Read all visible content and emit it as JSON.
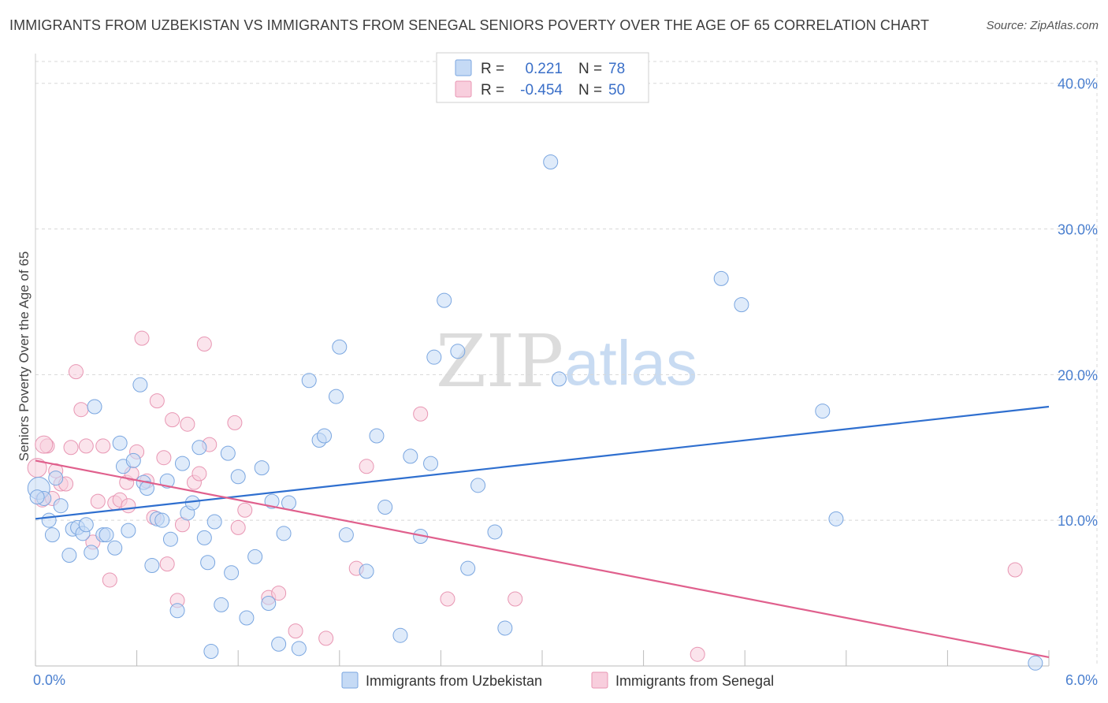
{
  "header": {
    "title": "IMMIGRANTS FROM UZBEKISTAN VS IMMIGRANTS FROM SENEGAL SENIORS POVERTY OVER THE AGE OF 65 CORRELATION CHART",
    "source": "Source: ZipAtlas.com"
  },
  "watermark": {
    "zip": "ZIP",
    "atlas": "atlas"
  },
  "colors": {
    "blue_fill": "#c5daf5",
    "blue_stroke": "#7aa6e0",
    "blue_line": "#2f6fcf",
    "pink_fill": "#f8cedd",
    "pink_stroke": "#e896b3",
    "pink_line": "#e0608d",
    "grid": "#d8d8d8",
    "tick_text": "#4a7fcf"
  },
  "chart_data": {
    "type": "scatter",
    "title": "IMMIGRANTS FROM UZBEKISTAN VS IMMIGRANTS FROM SENEGAL SENIORS POVERTY OVER THE AGE OF 65 CORRELATION CHART",
    "xlabel": "",
    "ylabel": "Seniors Poverty Over the Age of 65",
    "xlim": [
      0,
      6
    ],
    "ylim": [
      0,
      41.5
    ],
    "x_tick_labels": [
      "0.0%",
      "6.0%"
    ],
    "y_ticks": [
      10,
      20,
      30,
      40
    ],
    "y_tick_labels": [
      "10.0%",
      "20.0%",
      "30.0%",
      "40.0%"
    ],
    "grid": true,
    "legend": {
      "position": "top-center",
      "rows": [
        {
          "r_label": "R =",
          "r_value": "0.221",
          "n_label": "N =",
          "n_value": "78"
        },
        {
          "r_label": "R =",
          "r_value": "-0.454",
          "n_label": "N =",
          "n_value": "50"
        }
      ]
    },
    "series": [
      {
        "name": "Immigrants from Uzbekistan",
        "color": "blue",
        "trendline": {
          "x": [
            0,
            6
          ],
          "y": [
            10.1,
            17.8
          ]
        },
        "points": [
          [
            0.02,
            12.2
          ],
          [
            0.05,
            11.5
          ],
          [
            0.08,
            10.0
          ],
          [
            0.1,
            9.0
          ],
          [
            0.12,
            12.9
          ],
          [
            0.15,
            11.0
          ],
          [
            0.2,
            7.6
          ],
          [
            0.22,
            9.4
          ],
          [
            0.25,
            9.5
          ],
          [
            0.28,
            9.1
          ],
          [
            0.3,
            9.7
          ],
          [
            0.33,
            7.8
          ],
          [
            0.35,
            17.8
          ],
          [
            0.4,
            9.0
          ],
          [
            0.42,
            9.0
          ],
          [
            0.47,
            8.1
          ],
          [
            0.5,
            15.3
          ],
          [
            0.52,
            13.7
          ],
          [
            0.55,
            9.3
          ],
          [
            0.58,
            14.1
          ],
          [
            0.62,
            19.3
          ],
          [
            0.64,
            12.6
          ],
          [
            0.66,
            12.2
          ],
          [
            0.69,
            6.9
          ],
          [
            0.72,
            10.1
          ],
          [
            0.75,
            10.0
          ],
          [
            0.78,
            12.7
          ],
          [
            0.8,
            8.7
          ],
          [
            0.84,
            3.8
          ],
          [
            0.87,
            13.9
          ],
          [
            0.9,
            10.5
          ],
          [
            0.93,
            11.2
          ],
          [
            0.97,
            15.0
          ],
          [
            1.0,
            8.8
          ],
          [
            1.02,
            7.1
          ],
          [
            1.04,
            1.0
          ],
          [
            1.06,
            9.9
          ],
          [
            1.1,
            4.2
          ],
          [
            1.14,
            14.6
          ],
          [
            1.16,
            6.4
          ],
          [
            1.2,
            13.0
          ],
          [
            1.25,
            3.3
          ],
          [
            1.3,
            7.5
          ],
          [
            1.34,
            13.6
          ],
          [
            1.38,
            4.3
          ],
          [
            1.4,
            11.3
          ],
          [
            1.44,
            1.5
          ],
          [
            1.47,
            9.1
          ],
          [
            1.5,
            11.2
          ],
          [
            1.56,
            1.2
          ],
          [
            1.62,
            19.6
          ],
          [
            1.68,
            15.5
          ],
          [
            1.71,
            15.8
          ],
          [
            1.78,
            18.5
          ],
          [
            1.8,
            21.9
          ],
          [
            1.84,
            9.0
          ],
          [
            1.96,
            6.5
          ],
          [
            2.02,
            15.8
          ],
          [
            2.07,
            10.9
          ],
          [
            2.16,
            2.1
          ],
          [
            2.22,
            14.4
          ],
          [
            2.28,
            8.9
          ],
          [
            2.34,
            13.9
          ],
          [
            2.36,
            21.2
          ],
          [
            2.42,
            25.1
          ],
          [
            2.5,
            21.6
          ],
          [
            2.56,
            6.7
          ],
          [
            2.62,
            12.4
          ],
          [
            2.72,
            9.2
          ],
          [
            2.78,
            2.6
          ],
          [
            3.05,
            34.6
          ],
          [
            3.1,
            19.7
          ],
          [
            4.06,
            26.6
          ],
          [
            4.18,
            24.8
          ],
          [
            4.66,
            17.5
          ],
          [
            4.74,
            10.1
          ],
          [
            5.92,
            0.2
          ],
          [
            0.01,
            11.6
          ]
        ]
      },
      {
        "name": "Immigrants from Senegal",
        "color": "pink",
        "trendline": {
          "x": [
            0,
            6
          ],
          "y": [
            14.1,
            0.6
          ]
        },
        "points": [
          [
            0.01,
            13.6
          ],
          [
            0.04,
            11.4
          ],
          [
            0.07,
            15.1
          ],
          [
            0.1,
            11.5
          ],
          [
            0.12,
            13.4
          ],
          [
            0.15,
            12.5
          ],
          [
            0.18,
            12.5
          ],
          [
            0.21,
            15.0
          ],
          [
            0.24,
            20.2
          ],
          [
            0.27,
            17.6
          ],
          [
            0.3,
            15.1
          ],
          [
            0.34,
            8.5
          ],
          [
            0.37,
            11.3
          ],
          [
            0.4,
            15.1
          ],
          [
            0.44,
            5.9
          ],
          [
            0.47,
            11.2
          ],
          [
            0.5,
            11.4
          ],
          [
            0.54,
            12.6
          ],
          [
            0.57,
            13.2
          ],
          [
            0.6,
            14.7
          ],
          [
            0.63,
            22.5
          ],
          [
            0.66,
            12.7
          ],
          [
            0.7,
            10.2
          ],
          [
            0.72,
            18.2
          ],
          [
            0.76,
            14.3
          ],
          [
            0.78,
            7.0
          ],
          [
            0.81,
            16.9
          ],
          [
            0.84,
            4.5
          ],
          [
            0.87,
            9.7
          ],
          [
            0.9,
            16.6
          ],
          [
            0.94,
            12.6
          ],
          [
            0.97,
            13.2
          ],
          [
            1.0,
            22.1
          ],
          [
            1.03,
            15.2
          ],
          [
            1.18,
            16.7
          ],
          [
            1.2,
            9.5
          ],
          [
            1.24,
            10.7
          ],
          [
            1.38,
            4.7
          ],
          [
            1.44,
            5.0
          ],
          [
            1.54,
            2.4
          ],
          [
            1.72,
            1.9
          ],
          [
            1.9,
            6.7
          ],
          [
            1.96,
            13.7
          ],
          [
            2.28,
            17.3
          ],
          [
            2.44,
            4.6
          ],
          [
            2.84,
            4.6
          ],
          [
            3.92,
            0.8
          ],
          [
            5.8,
            6.6
          ],
          [
            0.55,
            11.0
          ],
          [
            0.05,
            15.2
          ]
        ]
      }
    ]
  },
  "bottom_legend": {
    "blue_label": "Immigrants from Uzbekistan",
    "pink_label": "Immigrants from Senegal"
  }
}
